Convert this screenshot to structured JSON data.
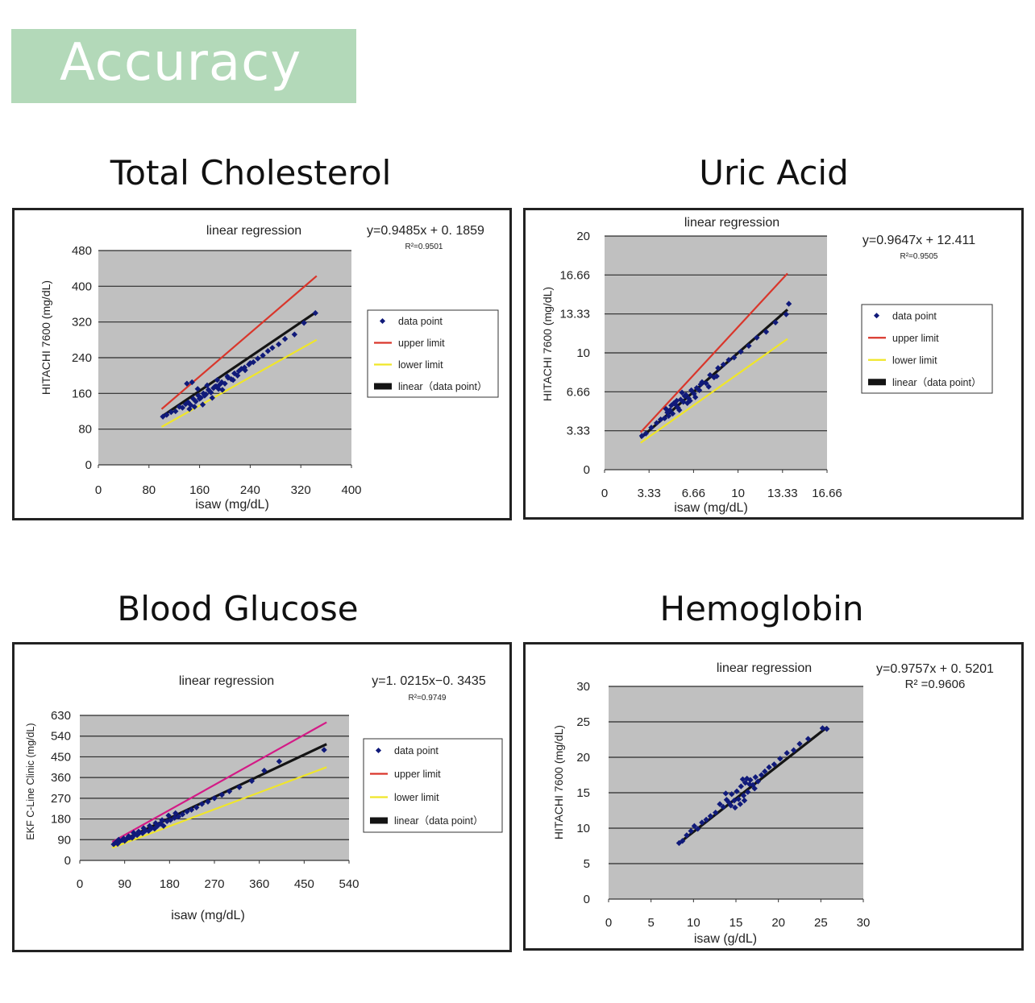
{
  "header": {
    "title": "Accuracy",
    "color": "#b3d9b9"
  },
  "colors": {
    "plot_bg": "#c0c0c0",
    "grid": "#2b2b2b",
    "point": "#101a7a",
    "upper": "#d9362b",
    "upper_glucose": "#d41a86",
    "lower": "#f0e628",
    "linear": "#141414"
  },
  "legend_labels": [
    "data point",
    "upper limit",
    "lower limit",
    "linear（data point）"
  ],
  "chart_data": [
    {
      "id": "chol",
      "panel_title": "Total Cholesterol",
      "type": "scatter",
      "title": "linear regression",
      "equation": "y=0.9485x + 0. 1859",
      "r2": "R²=0.9501",
      "xlabel": "isaw (mg/dL)",
      "ylabel": "HITACHI 7600 (mg/dL)",
      "xlim": [
        0,
        400
      ],
      "ylim": [
        0,
        480
      ],
      "xticks": [
        "0",
        "80",
        "160",
        "240",
        "320",
        "400"
      ],
      "yticks": [
        "0",
        "80",
        "160",
        "240",
        "320",
        "400",
        "480"
      ],
      "legend": true,
      "series": [
        {
          "name": "upper limit",
          "type": "line",
          "x": [
            100,
            345
          ],
          "y": [
            125,
            423
          ]
        },
        {
          "name": "lower limit",
          "type": "line",
          "x": [
            100,
            345
          ],
          "y": [
            85,
            280
          ]
        },
        {
          "name": "linear (data point)",
          "type": "line",
          "x": [
            100,
            345
          ],
          "y": [
            108,
            343
          ]
        },
        {
          "name": "data point",
          "type": "scatter",
          "x": [
            102,
            108,
            115,
            122,
            128,
            133,
            138,
            142,
            146,
            150,
            154,
            158,
            162,
            166,
            170,
            174,
            178,
            182,
            186,
            190,
            195,
            200,
            205,
            210,
            215,
            220,
            226,
            232,
            238,
            245,
            252,
            260,
            268,
            275,
            285,
            295,
            310,
            325,
            343,
            140,
            148,
            157,
            165,
            172,
            180,
            188,
            196,
            204,
            213,
            222,
            231,
            240,
            144,
            152,
            160,
            168,
            176,
            184,
            192
          ],
          "y": [
            108,
            112,
            118,
            120,
            130,
            128,
            136,
            140,
            134,
            148,
            142,
            155,
            150,
            160,
            158,
            168,
            162,
            172,
            176,
            170,
            185,
            182,
            195,
            192,
            205,
            200,
            215,
            212,
            225,
            230,
            238,
            245,
            255,
            262,
            270,
            282,
            292,
            318,
            340,
            182,
            185,
            170,
            135,
            178,
            150,
            190,
            168,
            198,
            190,
            210,
            218,
            228,
            125,
            130,
            148,
            155,
            165,
            175,
            180
          ]
        }
      ]
    },
    {
      "id": "uric",
      "panel_title": "Uric Acid",
      "type": "scatter",
      "title": "linear regression",
      "equation": "y=0.9647x + 12.411",
      "r2": "R²=0.9505",
      "xlabel": "isaw (mg/dL)",
      "ylabel": "HITACHI 7600 (mg/dL)",
      "xlim": [
        0,
        16.66
      ],
      "ylim": [
        0,
        20
      ],
      "xticks": [
        "0",
        "3.33",
        "6.66",
        "10",
        "13.33",
        "16.66"
      ],
      "yticks": [
        "0",
        "3.33",
        "6.66",
        "10",
        "13.33",
        "16.66",
        "20"
      ],
      "legend": true,
      "series": [
        {
          "name": "upper limit",
          "type": "line",
          "x": [
            2.7,
            13.7
          ],
          "y": [
            3.2,
            16.8
          ]
        },
        {
          "name": "lower limit",
          "type": "line",
          "x": [
            2.7,
            13.7
          ],
          "y": [
            2.3,
            11.2
          ]
        },
        {
          "name": "linear (data point)",
          "type": "line",
          "x": [
            2.7,
            13.7
          ],
          "y": [
            2.7,
            13.7
          ]
        },
        {
          "name": "data point",
          "type": "scatter",
          "x": [
            2.8,
            3.1,
            3.5,
            3.9,
            4.2,
            4.5,
            4.7,
            4.9,
            5.1,
            5.3,
            5.5,
            5.7,
            5.9,
            6.1,
            6.3,
            6.5,
            6.7,
            6.9,
            7.1,
            7.3,
            7.6,
            7.9,
            8.2,
            8.5,
            8.9,
            9.3,
            9.7,
            10.2,
            10.8,
            11.4,
            12.1,
            12.8,
            13.6,
            13.8,
            4.6,
            4.8,
            5.2,
            5.6,
            6.0,
            6.4,
            6.8,
            7.2,
            7.8,
            8.4,
            5.0,
            5.4,
            5.8,
            6.2
          ],
          "y": [
            2.9,
            3.1,
            3.6,
            4.0,
            4.3,
            4.4,
            4.9,
            5.1,
            4.8,
            5.6,
            5.3,
            6.0,
            5.8,
            6.4,
            6.1,
            6.8,
            6.5,
            7.0,
            6.8,
            7.5,
            7.4,
            8.1,
            7.9,
            8.7,
            9.0,
            9.4,
            9.6,
            10.1,
            10.6,
            11.3,
            11.8,
            12.6,
            13.3,
            14.2,
            5.2,
            4.6,
            5.7,
            5.1,
            6.3,
            5.9,
            6.2,
            7.3,
            7.1,
            8.0,
            5.5,
            5.9,
            6.6,
            5.7
          ]
        }
      ]
    },
    {
      "id": "glucose",
      "panel_title": "Blood Glucose",
      "type": "scatter",
      "title": "linear regression",
      "equation": "y=1. 0215x−0. 3435",
      "r2": "R²=0.9749",
      "xlabel": "isaw (mg/dL)",
      "ylabel": "EKF C-Line Clinic (mg/dL)",
      "xlim": [
        0,
        540
      ],
      "ylim": [
        0,
        630
      ],
      "xticks": [
        "0",
        "90",
        "180",
        "270",
        "360",
        "450",
        "540"
      ],
      "yticks": [
        "0",
        "90",
        "180",
        "270",
        "360",
        "450",
        "540",
        "630"
      ],
      "legend": true,
      "series": [
        {
          "name": "upper limit",
          "type": "line",
          "x": [
            65,
            495
          ],
          "y": [
            80,
            600
          ]
        },
        {
          "name": "lower limit",
          "type": "line",
          "x": [
            65,
            495
          ],
          "y": [
            55,
            405
          ]
        },
        {
          "name": "linear (data point)",
          "type": "line",
          "x": [
            65,
            495
          ],
          "y": [
            66,
            505
          ]
        },
        {
          "name": "data point",
          "type": "scatter",
          "x": [
            68,
            72,
            76,
            80,
            85,
            90,
            95,
            100,
            105,
            110,
            115,
            120,
            126,
            132,
            138,
            144,
            150,
            156,
            162,
            168,
            175,
            182,
            190,
            198,
            206,
            215,
            224,
            234,
            245,
            257,
            270,
            285,
            300,
            320,
            345,
            370,
            400,
            490,
            78,
            88,
            98,
            108,
            118,
            128,
            140,
            152,
            165,
            178,
            192
          ],
          "y": [
            70,
            78,
            72,
            82,
            88,
            85,
            95,
            100,
            98,
            112,
            110,
            120,
            118,
            130,
            128,
            140,
            138,
            150,
            160,
            150,
            170,
            175,
            185,
            190,
            200,
            212,
            220,
            230,
            245,
            255,
            270,
            285,
            300,
            318,
            345,
            390,
            430,
            480,
            90,
            95,
            105,
            120,
            125,
            140,
            150,
            162,
            175,
            195,
            205
          ]
        }
      ]
    },
    {
      "id": "hemo",
      "panel_title": "Hemoglobin",
      "type": "scatter",
      "title": "linear regression",
      "equation": "y=0.9757x + 0. 5201",
      "r2": "R² =0.9606",
      "xlabel": "isaw (g/dL)",
      "ylabel": "HITACHI 7600 (mg/dL)",
      "xlim": [
        0,
        30
      ],
      "ylim": [
        0,
        30
      ],
      "xticks": [
        "0",
        "5",
        "10",
        "15",
        "20",
        "25",
        "30"
      ],
      "yticks": [
        "0",
        "5",
        "10",
        "15",
        "20",
        "25",
        "30"
      ],
      "legend": false,
      "series": [
        {
          "name": "linear (data point)",
          "type": "line",
          "x": [
            8.2,
            25.8
          ],
          "y": [
            7.8,
            24.3
          ]
        },
        {
          "name": "data point",
          "type": "scatter",
          "x": [
            8.3,
            8.7,
            9.2,
            9.7,
            10.1,
            10.5,
            11.0,
            11.5,
            12.0,
            12.6,
            13.1,
            13.5,
            13.9,
            14.2,
            14.5,
            14.8,
            15.1,
            15.3,
            15.6,
            15.9,
            16.1,
            16.4,
            16.7,
            17.0,
            17.3,
            17.6,
            18.0,
            18.4,
            18.9,
            19.5,
            20.2,
            21.0,
            21.8,
            22.5,
            23.5,
            25.2,
            25.7,
            14.9,
            15.5,
            16.0,
            16.6,
            17.2,
            15.8,
            16.3,
            14.4,
            13.8
          ],
          "y": [
            7.9,
            8.2,
            9.0,
            9.6,
            10.3,
            9.9,
            10.8,
            11.2,
            11.7,
            12.2,
            13.4,
            13.0,
            14.0,
            13.6,
            14.8,
            13.9,
            15.2,
            14.1,
            15.9,
            14.6,
            16.4,
            15.1,
            16.8,
            16.1,
            17.2,
            16.6,
            17.5,
            18.0,
            18.6,
            19.0,
            19.8,
            20.6,
            21.0,
            21.9,
            22.6,
            24.1,
            24.0,
            12.9,
            13.4,
            13.9,
            16.2,
            15.6,
            16.9,
            17.0,
            13.2,
            14.9
          ]
        }
      ]
    }
  ]
}
